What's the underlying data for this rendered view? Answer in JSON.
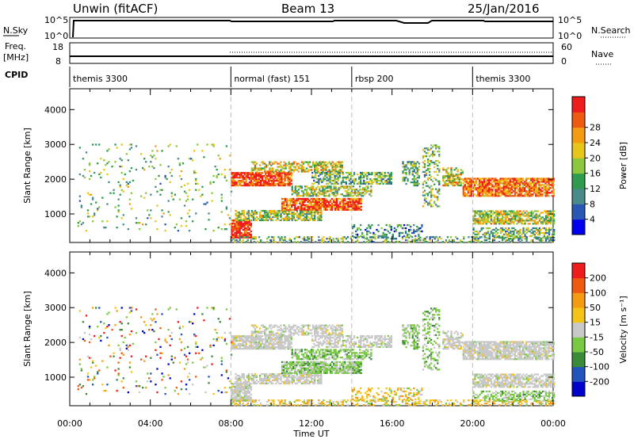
{
  "header": {
    "station": "Unwin (fitACF)",
    "beam": "Beam 13",
    "date": "25/Jan/2016"
  },
  "top_panels": {
    "nsky_label": "N.Sky",
    "nsky_ticks": [
      "10^5",
      "10^0"
    ],
    "nsky_right_ticks": [
      "10^5",
      "10^0"
    ],
    "nsearch_label": "N.Search",
    "freq_label": "Freq.",
    "freq_unit": "[MHz]",
    "freq_ticks": [
      "18",
      "8"
    ],
    "nave_ticks": [
      "60",
      "0"
    ],
    "nave_label": "Nave",
    "cpid_label": "CPID"
  },
  "cpid_segments": [
    {
      "label": "themis 3300",
      "start_hour": 0
    },
    {
      "label": "normal (fast) 151",
      "start_hour": 8
    },
    {
      "label": "rbsp 200",
      "start_hour": 14
    },
    {
      "label": "themis 3300",
      "start_hour": 20
    }
  ],
  "chart_data": [
    {
      "type": "heatmap",
      "title": "",
      "xlabel": "Time UT",
      "ylabel": "Slant Range [km]",
      "x_ticks": [
        "00:00",
        "04:00",
        "08:00",
        "12:00",
        "16:00",
        "20:00",
        "00:00"
      ],
      "xlim_hours": [
        0,
        24
      ],
      "y_ticks": [
        1000,
        2000,
        3000,
        4000
      ],
      "ylim": [
        180,
        4600
      ],
      "colorbar": {
        "label": "Power [dB]",
        "ticks": [
          "4",
          "8",
          "12",
          "16",
          "20",
          "24",
          "28"
        ],
        "colors": [
          "#0000ee",
          "#2a56b4",
          "#4a8a8a",
          "#2e9b4e",
          "#8cc63f",
          "#e6c619",
          "#f39c12",
          "#ee5a12",
          "#ee1c1c"
        ]
      },
      "mode_boundaries_hours": [
        8,
        14,
        20
      ]
    },
    {
      "type": "heatmap",
      "title": "",
      "xlabel": "Time UT",
      "ylabel": "Slant Range [km]",
      "x_ticks": [
        "00:00",
        "04:00",
        "08:00",
        "12:00",
        "16:00",
        "20:00",
        "00:00"
      ],
      "xlim_hours": [
        0,
        24
      ],
      "y_ticks": [
        1000,
        2000,
        3000,
        4000
      ],
      "ylim": [
        180,
        4600
      ],
      "colorbar": {
        "label": "Velocity [m s⁻¹]",
        "ticks": [
          "200",
          "100",
          "50",
          "15",
          "-15",
          "-50",
          "-100",
          "-200"
        ],
        "colors": [
          "#0000cc",
          "#2255bb",
          "#3a8a3a",
          "#7ac943",
          "#c8c8c8",
          "#f3c318",
          "#f39c12",
          "#ee5a12",
          "#ee1c1c"
        ]
      },
      "mode_boundaries_hours": [
        8,
        14,
        20
      ]
    }
  ]
}
